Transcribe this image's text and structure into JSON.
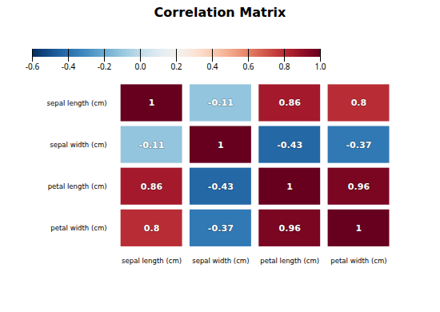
{
  "chart_data": {
    "type": "heatmap",
    "title": "Correlation Matrix",
    "categories": [
      "sepal length (cm)",
      "sepal width (cm)",
      "petal length (cm)",
      "petal width (cm)"
    ],
    "matrix": [
      [
        1.0,
        -0.11,
        0.86,
        0.8
      ],
      [
        -0.11,
        1.0,
        -0.43,
        -0.37
      ],
      [
        0.86,
        -0.43,
        1.0,
        0.96
      ],
      [
        0.8,
        -0.37,
        0.96,
        1.0
      ]
    ],
    "data_labels": true,
    "colorbar_range": [
      -0.6,
      1.0
    ],
    "colorbar_ticks": [
      {
        "value": 1.0,
        "label": "1.0"
      },
      0.8,
      0.6,
      0.4,
      0.2,
      {
        "value": 0.0,
        "label": "0.0"
      },
      -0.2,
      -0.4,
      -0.6
    ]
  }
}
